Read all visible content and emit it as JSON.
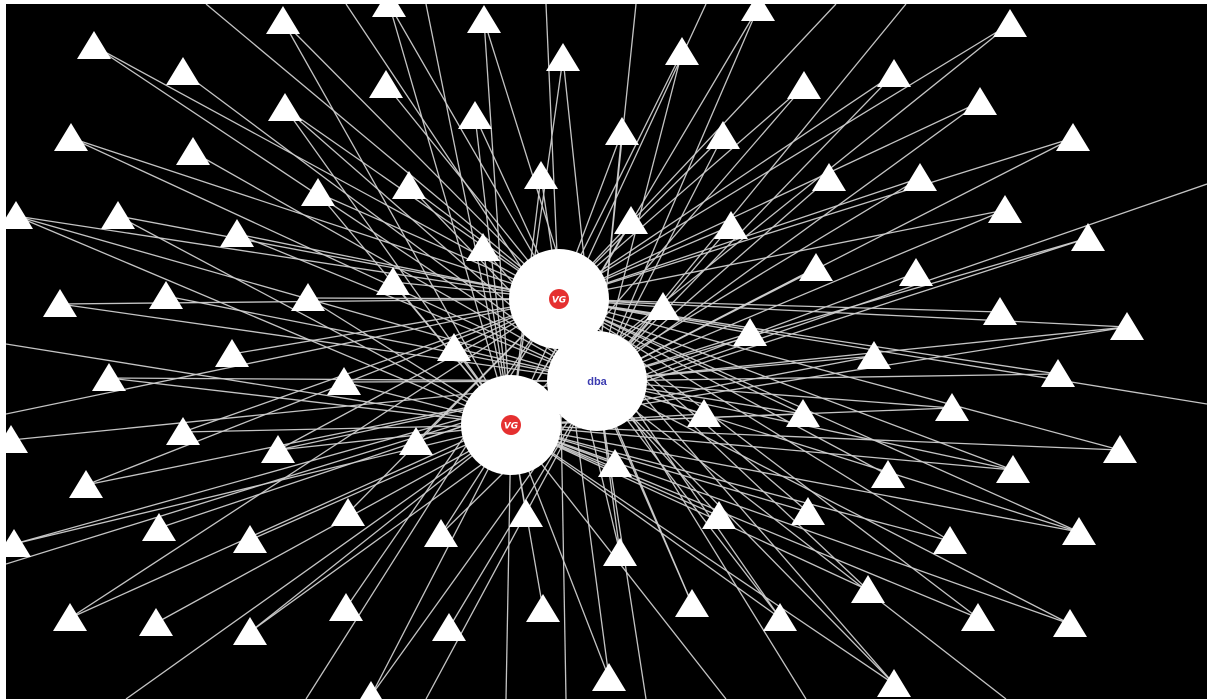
{
  "graph": {
    "background_color": "#000000",
    "edge_color": "#cfcfcf",
    "leaf_color": "#ffffff",
    "hubs": [
      {
        "id": "hub-vg-top",
        "logo": "vg-logo",
        "label": "VG",
        "logo_color": "#e53030"
      },
      {
        "id": "hub-dba",
        "logo": "dba-logo",
        "label": "dba",
        "logo_color": "#3b3bb0"
      },
      {
        "id": "hub-vg-bottom",
        "logo": "vg-logo",
        "label": "VG",
        "logo_color": "#e53030"
      }
    ],
    "leaf_shape": "triangle"
  }
}
